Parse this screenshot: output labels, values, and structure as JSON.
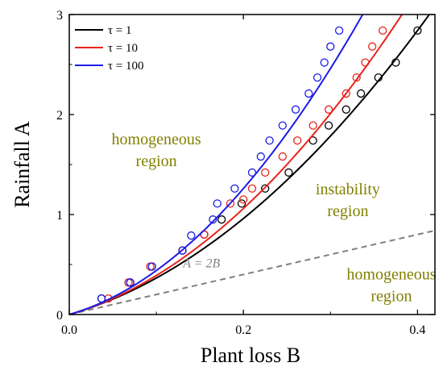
{
  "chart_data": {
    "type": "line",
    "xlabel": "Plant loss  B",
    "ylabel": "Rainfall  A",
    "xlim": [
      0,
      0.42
    ],
    "ylim": [
      0,
      3
    ],
    "x_ticks": [
      "0.0",
      "0.2",
      "0.4"
    ],
    "y_ticks": [
      "0",
      "1",
      "2",
      "3"
    ],
    "legend": {
      "position": "top-left",
      "frame": false
    },
    "series": [
      {
        "name": "τ = 1",
        "color": "#000000",
        "curve_coef": {
          "a": 2.5,
          "b": 11.5
        },
        "points_x": [
          0.037,
          0.07,
          0.095,
          0.13,
          0.155,
          0.175,
          0.198,
          0.225,
          0.252,
          0.28,
          0.298,
          0.318,
          0.335,
          0.355,
          0.375,
          0.4
        ],
        "points_y": [
          0.16,
          0.32,
          0.48,
          0.64,
          0.8,
          0.95,
          1.11,
          1.26,
          1.42,
          1.74,
          1.89,
          2.05,
          2.21,
          2.37,
          2.52,
          2.84
        ]
      },
      {
        "name": "τ = 10",
        "color": "#e8231c",
        "curve_coef": {
          "a": 2.5,
          "b": 14.0
        },
        "points_x": [
          0.045,
          0.068,
          0.093,
          0.13,
          0.155,
          0.185,
          0.2,
          0.21,
          0.225,
          0.245,
          0.262,
          0.28,
          0.298,
          0.318,
          0.33,
          0.34,
          0.348,
          0.36
        ],
        "points_y": [
          0.16,
          0.32,
          0.48,
          0.64,
          0.8,
          1.11,
          1.15,
          1.26,
          1.42,
          1.58,
          1.74,
          1.89,
          2.05,
          2.21,
          2.37,
          2.52,
          2.68,
          2.84
        ]
      },
      {
        "name": "τ = 100",
        "color": "#1c1ce8",
        "curve_coef": {
          "a": 2.5,
          "b": 19.0
        },
        "points_x": [
          0.037,
          0.07,
          0.095,
          0.13,
          0.14,
          0.165,
          0.17,
          0.19,
          0.21,
          0.22,
          0.23,
          0.245,
          0.26,
          0.275,
          0.285,
          0.293,
          0.3,
          0.31
        ],
        "points_y": [
          0.16,
          0.32,
          0.48,
          0.64,
          0.79,
          0.95,
          1.11,
          1.26,
          1.42,
          1.58,
          1.74,
          1.89,
          2.05,
          2.21,
          2.37,
          2.52,
          2.68,
          2.84
        ]
      }
    ],
    "reference_line": {
      "label": "A = 2B",
      "slope": 2,
      "color": "#808080",
      "style": "dashed"
    },
    "annotations": [
      {
        "lines": [
          "homogeneous",
          "region"
        ],
        "at": [
          0.1,
          1.7
        ]
      },
      {
        "lines": [
          "instability",
          "region"
        ],
        "at": [
          0.32,
          1.2
        ]
      },
      {
        "lines": [
          "homogeneous",
          "region"
        ],
        "at": [
          0.37,
          0.35
        ]
      }
    ]
  }
}
